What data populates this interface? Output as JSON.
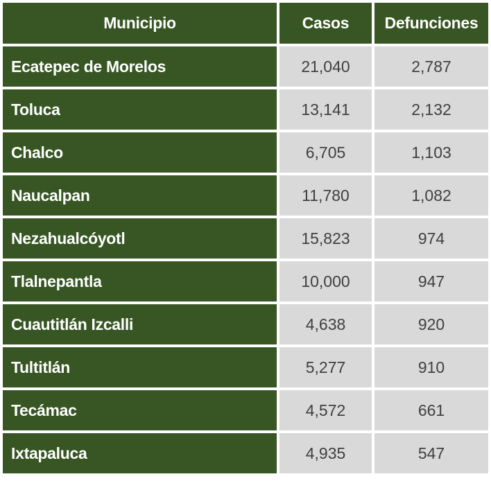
{
  "table": {
    "headers": [
      "Municipio",
      "Casos",
      "Defunciones"
    ],
    "rows": [
      {
        "municipio": "Ecatepec de Morelos",
        "casos": "21,040",
        "defunciones": "2,787"
      },
      {
        "municipio": "Toluca",
        "casos": "13,141",
        "defunciones": "2,132"
      },
      {
        "municipio": "Chalco",
        "casos": "6,705",
        "defunciones": "1,103"
      },
      {
        "municipio": "Naucalpan",
        "casos": "11,780",
        "defunciones": "1,082"
      },
      {
        "municipio": "Nezahualcóyotl",
        "casos": "15,823",
        "defunciones": "974"
      },
      {
        "municipio": "Tlalnepantla",
        "casos": "10,000",
        "defunciones": "947"
      },
      {
        "municipio": "Cuautitlán Izcalli",
        "casos": "4,638",
        "defunciones": "920"
      },
      {
        "municipio": "Tultitlán",
        "casos": "5,277",
        "defunciones": "910"
      },
      {
        "municipio": "Tecámac",
        "casos": "4,572",
        "defunciones": "661"
      },
      {
        "municipio": "Ixtapaluca",
        "casos": "4,935",
        "defunciones": "547"
      }
    ]
  },
  "colors": {
    "header_bg": "#375623",
    "name_cell_bg": "#375623",
    "value_cell_bg": "#d9d9d9",
    "value_text": "#404040"
  }
}
